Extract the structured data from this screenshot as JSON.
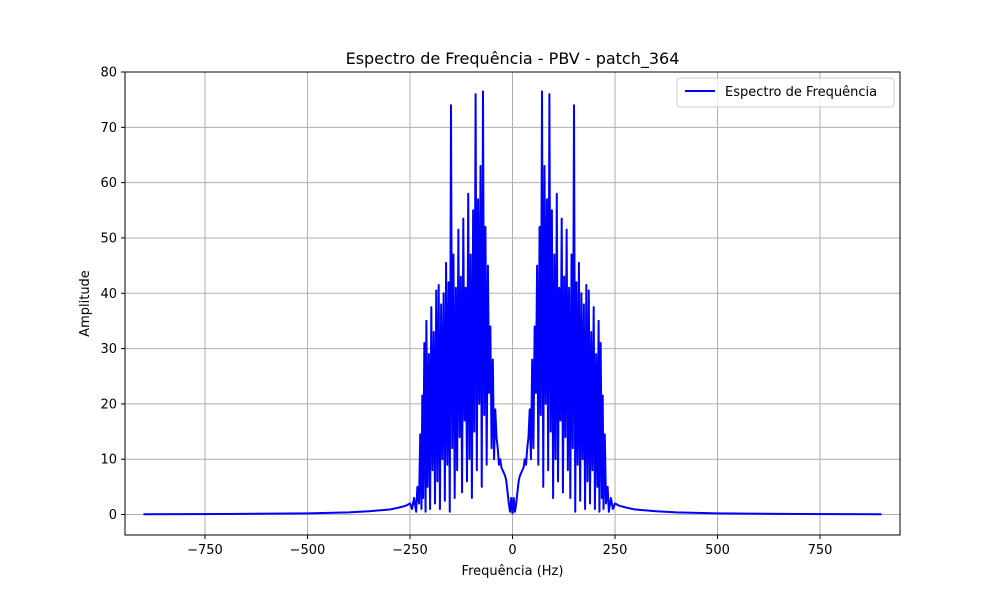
{
  "chart_data": {
    "type": "line",
    "title": "Espectro de Frequência - PBV - patch_364",
    "xlabel": "Frequência (Hz)",
    "ylabel": "Amplitude",
    "xlim": [
      -945,
      945
    ],
    "ylim": [
      -3.7,
      80
    ],
    "xticks": [
      -750,
      -500,
      -250,
      0,
      250,
      500,
      750
    ],
    "xtick_labels": [
      "−750",
      "−500",
      "−250",
      "0",
      "250",
      "500",
      "750"
    ],
    "yticks": [
      0,
      10,
      20,
      30,
      40,
      50,
      60,
      70,
      80
    ],
    "ytick_labels": [
      "0",
      "10",
      "20",
      "30",
      "40",
      "50",
      "60",
      "70",
      "80"
    ],
    "grid": true,
    "legend_position": "top-right",
    "series": [
      {
        "name": "Espectro de Frequência",
        "color": "#0000ff",
        "x": [
          -900,
          -700,
          -500,
          -400,
          -350,
          -300,
          -280,
          -260,
          -250,
          -245,
          -240,
          -235,
          -232,
          -228,
          -225,
          -222,
          -220,
          -218,
          -215,
          -212,
          -210,
          -207,
          -204,
          -201,
          -198,
          -195,
          -192,
          -189,
          -186,
          -183,
          -180,
          -177,
          -174,
          -171,
          -168,
          -165,
          -162,
          -159,
          -156,
          -153,
          -150,
          -147,
          -144,
          -141,
          -138,
          -135,
          -132,
          -129,
          -126,
          -123,
          -120,
          -117,
          -114,
          -111,
          -108,
          -105,
          -102,
          -99,
          -96,
          -93,
          -90,
          -87,
          -84,
          -81,
          -78,
          -75,
          -72,
          -69,
          -66,
          -63,
          -60,
          -57,
          -54,
          -51,
          -48,
          -45,
          -42,
          -39,
          -36,
          -33,
          -30,
          -27,
          -24,
          -21,
          -18,
          -15,
          -12,
          -9,
          -6,
          -3,
          0,
          3,
          6,
          9,
          12,
          15,
          18,
          21,
          24,
          27,
          30,
          33,
          36,
          39,
          42,
          45,
          48,
          51,
          54,
          57,
          60,
          63,
          66,
          69,
          72,
          75,
          78,
          81,
          84,
          87,
          90,
          93,
          96,
          99,
          102,
          105,
          108,
          111,
          114,
          117,
          120,
          123,
          126,
          129,
          132,
          135,
          138,
          141,
          144,
          147,
          150,
          153,
          156,
          159,
          162,
          165,
          168,
          171,
          174,
          177,
          180,
          183,
          186,
          189,
          192,
          195,
          198,
          201,
          204,
          207,
          210,
          212,
          215,
          218,
          220,
          222,
          225,
          228,
          232,
          235,
          240,
          245,
          250,
          260,
          280,
          300,
          350,
          400,
          500,
          700,
          900
        ],
        "y": [
          0.05,
          0.1,
          0.2,
          0.4,
          0.6,
          0.9,
          1.2,
          1.6,
          2.0,
          1.0,
          3.0,
          0.5,
          5.0,
          2.0,
          14.5,
          1.0,
          21.5,
          3.0,
          31.0,
          0.5,
          35.0,
          5.0,
          29.0,
          1.0,
          37.5,
          8.0,
          33.0,
          2.0,
          40.5,
          6.0,
          41.5,
          1.0,
          38.0,
          10.0,
          40.0,
          2.5,
          45.5,
          9.0,
          42.0,
          0.5,
          74.0,
          12.0,
          47.0,
          3.0,
          41.0,
          8.0,
          51.5,
          14.0,
          43.0,
          4.0,
          53.5,
          17.0,
          41.0,
          6.0,
          58.0,
          10.0,
          47.0,
          3.0,
          55.0,
          15.0,
          76.0,
          8.0,
          57.0,
          20.0,
          63.0,
          5.0,
          76.5,
          18.0,
          52.0,
          9.0,
          45.0,
          22.0,
          34.0,
          12.0,
          28.0,
          10.0,
          19.0,
          14.0,
          12.0,
          9.0,
          10.0,
          8.5,
          8.0,
          7.5,
          7.0,
          6.0,
          4.0,
          2.0,
          0.5,
          3.0,
          0.2,
          3.0,
          0.5,
          2.0,
          4.0,
          6.0,
          7.0,
          7.5,
          8.0,
          8.5,
          10.0,
          9.0,
          12.0,
          14.0,
          19.0,
          10.0,
          28.0,
          12.0,
          34.0,
          22.0,
          45.0,
          9.0,
          52.0,
          18.0,
          76.5,
          5.0,
          63.0,
          20.0,
          57.0,
          8.0,
          76.0,
          15.0,
          55.0,
          3.0,
          47.0,
          10.0,
          58.0,
          6.0,
          41.0,
          17.0,
          53.5,
          4.0,
          43.0,
          14.0,
          51.5,
          8.0,
          41.0,
          3.0,
          47.0,
          12.0,
          74.0,
          0.5,
          42.0,
          9.0,
          45.5,
          2.5,
          40.0,
          10.0,
          38.0,
          1.0,
          41.5,
          6.0,
          40.5,
          2.0,
          33.0,
          8.0,
          37.5,
          1.0,
          29.0,
          5.0,
          35.0,
          0.5,
          31.0,
          3.0,
          21.5,
          1.0,
          14.5,
          2.0,
          5.0,
          0.5,
          3.0,
          1.0,
          2.0,
          1.6,
          1.2,
          0.9,
          0.6,
          0.4,
          0.2,
          0.1,
          0.05
        ]
      }
    ]
  }
}
